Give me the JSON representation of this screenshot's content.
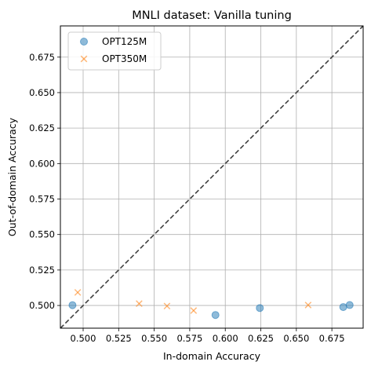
{
  "chart_data": {
    "type": "scatter",
    "title": "MNLI dataset: Vanilla tuning",
    "xlabel": "In-domain Accuracy",
    "ylabel": "Out-of-domain Accuracy",
    "xlim": [
      0.484,
      0.697
    ],
    "ylim": [
      0.484,
      0.697
    ],
    "xticks": [
      "0.500",
      "0.525",
      "0.550",
      "0.575",
      "0.600",
      "0.625",
      "0.650",
      "0.675"
    ],
    "yticks": [
      "0.500",
      "0.525",
      "0.550",
      "0.575",
      "0.600",
      "0.625",
      "0.650",
      "0.675"
    ],
    "xtick_values": [
      0.5,
      0.525,
      0.55,
      0.575,
      0.6,
      0.625,
      0.65,
      0.675
    ],
    "ytick_values": [
      0.5,
      0.525,
      0.55,
      0.575,
      0.6,
      0.625,
      0.65,
      0.675
    ],
    "grid": true,
    "diagonal_reference": true,
    "legend_position": "top-left",
    "series": [
      {
        "name": "OPT125M",
        "marker": "circle",
        "color": "#1f77b4",
        "points": [
          {
            "x": 0.4925,
            "y": 0.5002
          },
          {
            "x": 0.5931,
            "y": 0.4933
          },
          {
            "x": 0.6243,
            "y": 0.4982
          },
          {
            "x": 0.683,
            "y": 0.4989
          },
          {
            "x": 0.6875,
            "y": 0.5003
          }
        ]
      },
      {
        "name": "OPT350M",
        "marker": "x",
        "color": "#ff7f0e",
        "points": [
          {
            "x": 0.4962,
            "y": 0.5092
          },
          {
            "x": 0.5394,
            "y": 0.5013
          },
          {
            "x": 0.559,
            "y": 0.4996
          },
          {
            "x": 0.5777,
            "y": 0.4964
          },
          {
            "x": 0.6583,
            "y": 0.5003
          }
        ]
      }
    ]
  }
}
